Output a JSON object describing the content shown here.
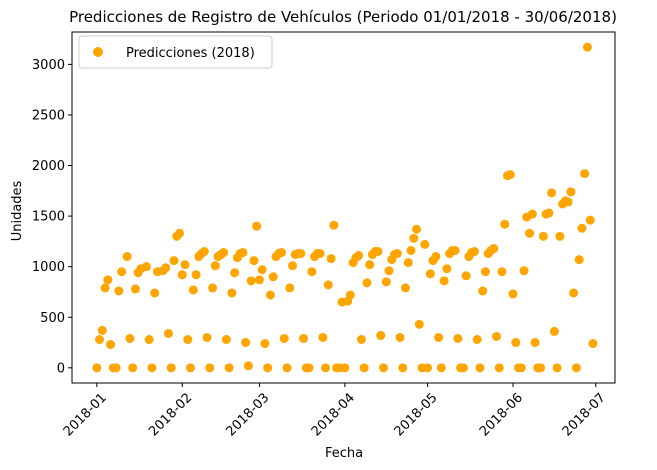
{
  "chart_data": {
    "type": "scatter",
    "title": "Predicciones de Registro de Vehículos (Periodo 01/01/2018 - 30/06/2018)",
    "xlabel": "Fecha",
    "ylabel": "Unidades",
    "xlim": [
      "2017-12-23",
      "2018-07-08"
    ],
    "ylim": [
      -150,
      3320
    ],
    "xticks": [
      "2018-01",
      "2018-02",
      "2018-03",
      "2018-04",
      "2018-05",
      "2018-06",
      "2018-07"
    ],
    "yticks": [
      0,
      500,
      1000,
      1500,
      2000,
      2500,
      3000
    ],
    "grid": false,
    "legend_position": "top-left",
    "series": [
      {
        "name": "Predicciones (2018)",
        "color": "#FFA500",
        "points": [
          [
            "2018-01-01",
            0
          ],
          [
            "2018-01-02",
            280
          ],
          [
            "2018-01-03",
            370
          ],
          [
            "2018-01-04",
            790
          ],
          [
            "2018-01-05",
            870
          ],
          [
            "2018-01-06",
            230
          ],
          [
            "2018-01-07",
            0
          ],
          [
            "2018-01-08",
            0
          ],
          [
            "2018-01-09",
            760
          ],
          [
            "2018-01-10",
            950
          ],
          [
            "2018-01-12",
            1100
          ],
          [
            "2018-01-13",
            290
          ],
          [
            "2018-01-14",
            0
          ],
          [
            "2018-01-15",
            780
          ],
          [
            "2018-01-16",
            940
          ],
          [
            "2018-01-17",
            980
          ],
          [
            "2018-01-19",
            1000
          ],
          [
            "2018-01-20",
            280
          ],
          [
            "2018-01-21",
            0
          ],
          [
            "2018-01-22",
            740
          ],
          [
            "2018-01-23",
            950
          ],
          [
            "2018-01-25",
            960
          ],
          [
            "2018-01-26",
            990
          ],
          [
            "2018-01-27",
            340
          ],
          [
            "2018-01-28",
            0
          ],
          [
            "2018-01-29",
            1060
          ],
          [
            "2018-01-30",
            1300
          ],
          [
            "2018-01-31",
            1330
          ],
          [
            "2018-02-01",
            920
          ],
          [
            "2018-02-02",
            1020
          ],
          [
            "2018-02-03",
            280
          ],
          [
            "2018-02-04",
            0
          ],
          [
            "2018-02-05",
            770
          ],
          [
            "2018-02-06",
            920
          ],
          [
            "2018-02-07",
            1100
          ],
          [
            "2018-02-08",
            1130
          ],
          [
            "2018-02-09",
            1150
          ],
          [
            "2018-02-10",
            300
          ],
          [
            "2018-02-11",
            0
          ],
          [
            "2018-02-12",
            790
          ],
          [
            "2018-02-13",
            1010
          ],
          [
            "2018-02-14",
            1100
          ],
          [
            "2018-02-15",
            1120
          ],
          [
            "2018-02-16",
            1140
          ],
          [
            "2018-02-17",
            280
          ],
          [
            "2018-02-18",
            0
          ],
          [
            "2018-02-19",
            740
          ],
          [
            "2018-02-20",
            940
          ],
          [
            "2018-02-21",
            1090
          ],
          [
            "2018-02-22",
            1130
          ],
          [
            "2018-02-23",
            1140
          ],
          [
            "2018-02-24",
            250
          ],
          [
            "2018-02-25",
            20
          ],
          [
            "2018-02-26",
            860
          ],
          [
            "2018-02-27",
            1060
          ],
          [
            "2018-02-28",
            1400
          ],
          [
            "2018-03-01",
            870
          ],
          [
            "2018-03-02",
            970
          ],
          [
            "2018-03-03",
            240
          ],
          [
            "2018-03-04",
            0
          ],
          [
            "2018-03-05",
            720
          ],
          [
            "2018-03-06",
            900
          ],
          [
            "2018-03-07",
            1100
          ],
          [
            "2018-03-08",
            1130
          ],
          [
            "2018-03-09",
            1140
          ],
          [
            "2018-03-10",
            290
          ],
          [
            "2018-03-11",
            0
          ],
          [
            "2018-03-12",
            790
          ],
          [
            "2018-03-13",
            1010
          ],
          [
            "2018-03-14",
            1120
          ],
          [
            "2018-03-15",
            1130
          ],
          [
            "2018-03-16",
            1130
          ],
          [
            "2018-03-17",
            290
          ],
          [
            "2018-03-18",
            0
          ],
          [
            "2018-03-19",
            0
          ],
          [
            "2018-03-20",
            950
          ],
          [
            "2018-03-21",
            1100
          ],
          [
            "2018-03-22",
            1130
          ],
          [
            "2018-03-23",
            1130
          ],
          [
            "2018-03-24",
            300
          ],
          [
            "2018-03-25",
            0
          ],
          [
            "2018-03-26",
            820
          ],
          [
            "2018-03-27",
            1080
          ],
          [
            "2018-03-28",
            1410
          ],
          [
            "2018-03-29",
            0
          ],
          [
            "2018-03-30",
            0
          ],
          [
            "2018-03-31",
            650
          ],
          [
            "2018-04-01",
            0
          ],
          [
            "2018-04-02",
            660
          ],
          [
            "2018-04-03",
            720
          ],
          [
            "2018-04-04",
            1040
          ],
          [
            "2018-04-05",
            1090
          ],
          [
            "2018-04-06",
            1110
          ],
          [
            "2018-04-07",
            280
          ],
          [
            "2018-04-08",
            0
          ],
          [
            "2018-04-09",
            840
          ],
          [
            "2018-04-10",
            1020
          ],
          [
            "2018-04-11",
            1120
          ],
          [
            "2018-04-12",
            1150
          ],
          [
            "2018-04-13",
            1150
          ],
          [
            "2018-04-14",
            320
          ],
          [
            "2018-04-15",
            0
          ],
          [
            "2018-04-16",
            850
          ],
          [
            "2018-04-17",
            960
          ],
          [
            "2018-04-18",
            1070
          ],
          [
            "2018-04-19",
            1120
          ],
          [
            "2018-04-20",
            1130
          ],
          [
            "2018-04-21",
            300
          ],
          [
            "2018-04-22",
            0
          ],
          [
            "2018-04-23",
            790
          ],
          [
            "2018-04-24",
            1040
          ],
          [
            "2018-04-25",
            1160
          ],
          [
            "2018-04-26",
            1280
          ],
          [
            "2018-04-27",
            1370
          ],
          [
            "2018-04-28",
            430
          ],
          [
            "2018-04-29",
            0
          ],
          [
            "2018-04-30",
            1220
          ],
          [
            "2018-05-01",
            0
          ],
          [
            "2018-05-02",
            930
          ],
          [
            "2018-05-03",
            1060
          ],
          [
            "2018-05-04",
            1100
          ],
          [
            "2018-05-05",
            300
          ],
          [
            "2018-05-06",
            0
          ],
          [
            "2018-05-07",
            860
          ],
          [
            "2018-05-08",
            980
          ],
          [
            "2018-05-09",
            1130
          ],
          [
            "2018-05-10",
            1160
          ],
          [
            "2018-05-11",
            1160
          ],
          [
            "2018-05-12",
            290
          ],
          [
            "2018-05-13",
            0
          ],
          [
            "2018-05-14",
            0
          ],
          [
            "2018-05-15",
            910
          ],
          [
            "2018-05-16",
            1100
          ],
          [
            "2018-05-17",
            1140
          ],
          [
            "2018-05-18",
            1150
          ],
          [
            "2018-05-19",
            280
          ],
          [
            "2018-05-20",
            0
          ],
          [
            "2018-05-21",
            760
          ],
          [
            "2018-05-22",
            950
          ],
          [
            "2018-05-23",
            1130
          ],
          [
            "2018-05-24",
            1160
          ],
          [
            "2018-05-25",
            1180
          ],
          [
            "2018-05-26",
            310
          ],
          [
            "2018-05-27",
            0
          ],
          [
            "2018-05-28",
            950
          ],
          [
            "2018-05-29",
            1420
          ],
          [
            "2018-05-30",
            1900
          ],
          [
            "2018-05-31",
            1910
          ],
          [
            "2018-06-01",
            730
          ],
          [
            "2018-06-02",
            250
          ],
          [
            "2018-06-03",
            0
          ],
          [
            "2018-06-04",
            0
          ],
          [
            "2018-06-05",
            960
          ],
          [
            "2018-06-06",
            1490
          ],
          [
            "2018-06-07",
            1330
          ],
          [
            "2018-06-08",
            1520
          ],
          [
            "2018-06-09",
            250
          ],
          [
            "2018-06-10",
            0
          ],
          [
            "2018-06-11",
            0
          ],
          [
            "2018-06-12",
            1300
          ],
          [
            "2018-06-13",
            1520
          ],
          [
            "2018-06-14",
            1530
          ],
          [
            "2018-06-15",
            1730
          ],
          [
            "2018-06-16",
            360
          ],
          [
            "2018-06-17",
            0
          ],
          [
            "2018-06-18",
            1300
          ],
          [
            "2018-06-19",
            1620
          ],
          [
            "2018-06-20",
            1650
          ],
          [
            "2018-06-21",
            1640
          ],
          [
            "2018-06-22",
            1740
          ],
          [
            "2018-06-23",
            740
          ],
          [
            "2018-06-24",
            0
          ],
          [
            "2018-06-25",
            1070
          ],
          [
            "2018-06-26",
            1380
          ],
          [
            "2018-06-27",
            1920
          ],
          [
            "2018-06-28",
            3170
          ],
          [
            "2018-06-29",
            1460
          ],
          [
            "2018-06-30",
            240
          ]
        ]
      }
    ]
  }
}
